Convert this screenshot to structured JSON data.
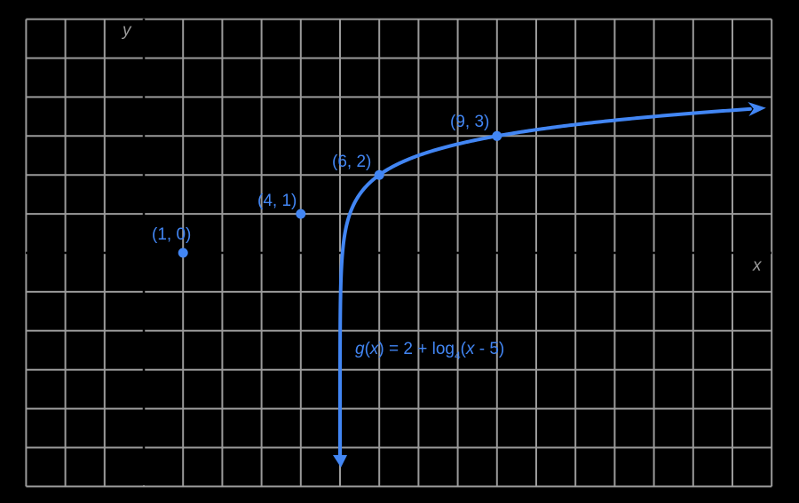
{
  "chart_data": {
    "type": "line",
    "title": "",
    "xlabel": "x",
    "ylabel": "y",
    "xlim": [
      -3,
      16
    ],
    "ylim": [
      -6,
      6
    ],
    "grid": true,
    "function": "g(x) = 2 + log_4(x - 5)",
    "vertical_asymptote": 5,
    "series": [
      {
        "name": "g(x) = 2 + log4(x - 5)",
        "color": "#4286f4",
        "x": [
          5.01,
          5.05,
          5.1,
          5.25,
          5.5,
          6,
          7,
          8,
          9,
          11,
          13,
          15.7
        ],
        "y": [
          -1.32,
          -0.16,
          0.34,
          1.0,
          1.5,
          2,
          2.5,
          2.79,
          3,
          3.29,
          3.5,
          3.71
        ]
      }
    ],
    "points": [
      {
        "label": "(1, 0)",
        "x": 1,
        "y": 0
      },
      {
        "label": "(4, 1)",
        "x": 4,
        "y": 1
      },
      {
        "label": "(6, 2)",
        "x": 6,
        "y": 2
      },
      {
        "label": "(9, 3)",
        "x": 9,
        "y": 3
      }
    ],
    "annotations": [
      "g(x) = 2 + log4(x - 5)"
    ]
  },
  "labels": {
    "x_axis": "x",
    "y_axis": "y",
    "point_1": "(1, 0)",
    "point_2": "(4, 1)",
    "point_3": "(6, 2)",
    "point_4": "(9, 3)",
    "eq_g": "g",
    "eq_x1": "x",
    "eq_mid": ") = 2 + log",
    "eq_base": "4",
    "eq_x2": "x",
    "eq_end": " - 5)"
  },
  "colors": {
    "background": "#000000",
    "grid": "#9a9a9a",
    "curve": "#4286f4"
  }
}
